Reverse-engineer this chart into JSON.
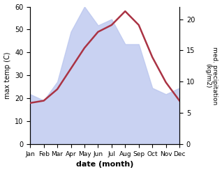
{
  "months": [
    "Jan",
    "Feb",
    "Mar",
    "Apr",
    "May",
    "Jun",
    "Jul",
    "Aug",
    "Sep",
    "Oct",
    "Nov",
    "Dec"
  ],
  "temperature": [
    18,
    19,
    24,
    33,
    42,
    49,
    52,
    58,
    52,
    38,
    27,
    19
  ],
  "precipitation": [
    8,
    7,
    10,
    18,
    22,
    19,
    20,
    16,
    16,
    9,
    8,
    9
  ],
  "temp_color": "#aa3344",
  "precip_fill_color": "#b8c4ee",
  "precip_fill_alpha": 0.75,
  "xlabel": "date (month)",
  "ylabel_left": "max temp (C)",
  "ylabel_right": "med. precipitation\n(kg/m2)",
  "ylim_left": [
    0,
    60
  ],
  "ylim_right": [
    0,
    22
  ],
  "yticks_left": [
    0,
    10,
    20,
    30,
    40,
    50,
    60
  ],
  "yticks_right": [
    0,
    5,
    10,
    15,
    20
  ],
  "bg_color": "#ffffff"
}
